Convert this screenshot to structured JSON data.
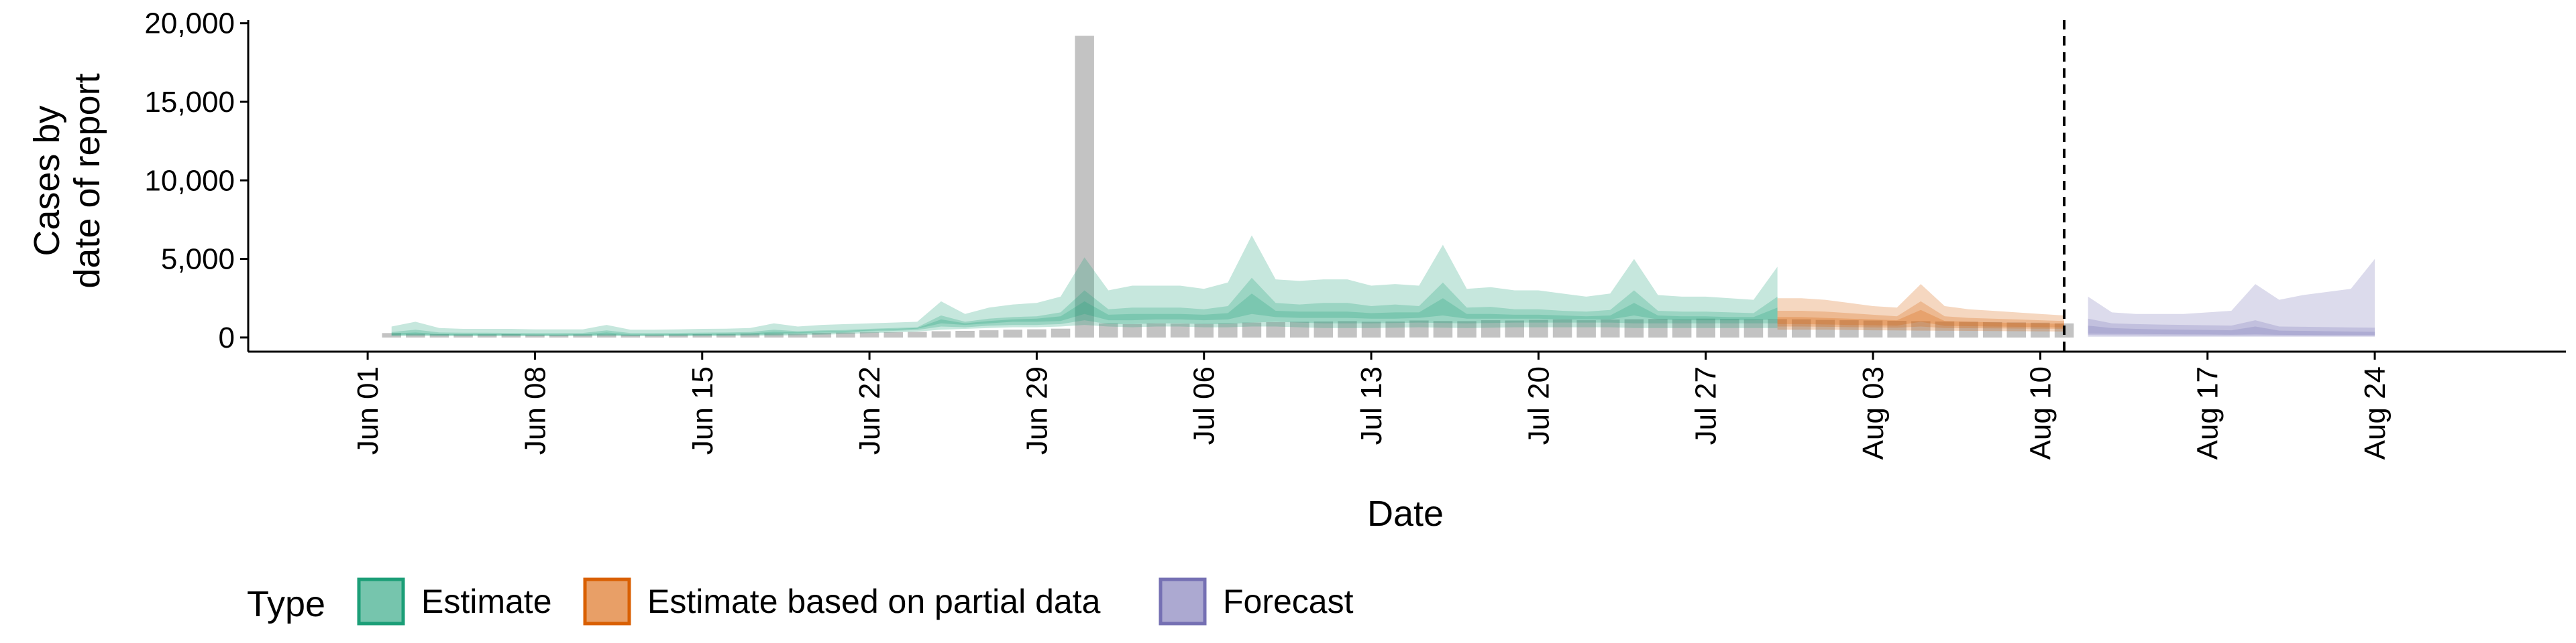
{
  "chart_data": {
    "type": "area",
    "xlabel": "Date",
    "ylabel_lines": [
      "Cases by",
      "date of report"
    ],
    "x_ticks": [
      "Jun 01",
      "Jun 08",
      "Jun 15",
      "Jun 22",
      "Jun 29",
      "Jul 06",
      "Jul 13",
      "Jul 20",
      "Jul 27",
      "Aug 03",
      "Aug 10",
      "Aug 17",
      "Aug 24"
    ],
    "y_ticks": [
      "0",
      "5,000",
      "10,000",
      "15,000",
      "20,000"
    ],
    "y_tick_values": [
      0,
      5000,
      10000,
      15000,
      20000
    ],
    "ylim": [
      -900,
      20200
    ],
    "x_range": [
      "2020-05-27",
      "2020-09-01"
    ],
    "vline_date": "2020-08-11",
    "observed_cases": {
      "color": "#bdbdbd",
      "start": "2020-06-02",
      "values": [
        280,
        230,
        210,
        190,
        200,
        210,
        180,
        170,
        190,
        200,
        170,
        180,
        190,
        210,
        230,
        250,
        260,
        240,
        290,
        310,
        330,
        340,
        360,
        400,
        420,
        460,
        500,
        520,
        560,
        19200,
        900,
        850,
        900,
        880,
        870,
        900,
        950,
        980,
        1000,
        1020,
        1040,
        1000,
        1020,
        1080,
        1050,
        1040,
        1100,
        1080,
        1120,
        1150,
        1100,
        1140,
        1160,
        1180,
        1150,
        1200,
        1180,
        1160,
        1170,
        1160,
        1120,
        1100,
        1080,
        1060,
        1040,
        1020,
        1000,
        980,
        960,
        940,
        900
      ]
    },
    "series": [
      {
        "name": "Estimate",
        "color": "#1b9e77",
        "start": "2020-06-02",
        "bands": [
          {
            "lower": [
              100,
              110,
              100,
              90,
              90,
              90,
              90,
              90,
              90,
              100,
              90,
              90,
              90,
              100,
              100,
              110,
              120,
              140,
              180,
              220,
              280,
              320,
              380,
              500,
              550,
              600,
              650,
              650,
              700,
              800,
              700,
              650,
              700,
              700,
              650,
              650,
              700,
              700,
              650,
              600,
              600,
              600,
              620,
              650,
              620,
              600,
              620,
              650,
              650,
              650,
              650,
              650,
              600,
              600,
              600,
              600,
              600,
              600,
              600
            ],
            "upper": [
              700,
              1000,
              600,
              550,
              550,
              550,
              520,
              520,
              520,
              800,
              500,
              500,
              520,
              550,
              560,
              600,
              900,
              700,
              800,
              850,
              900,
              950,
              1000,
              2300,
              1500,
              1900,
              2100,
              2200,
              2600,
              5100,
              3000,
              3300,
              3300,
              3300,
              3100,
              3500,
              6500,
              3700,
              3600,
              3700,
              3700,
              3300,
              3400,
              3300,
              5900,
              3100,
              3200,
              3000,
              3000,
              2800,
              2600,
              2800,
              5000,
              2700,
              2600,
              2600,
              2500,
              2400,
              4500
            ]
          },
          {
            "lower": [
              120,
              140,
              120,
              110,
              110,
              110,
              110,
              110,
              110,
              130,
              110,
              110,
              110,
              120,
              130,
              150,
              170,
              200,
              250,
              300,
              370,
              420,
              480,
              700,
              650,
              750,
              800,
              800,
              850,
              1100,
              850,
              850,
              900,
              900,
              850,
              850,
              950,
              1000,
              950,
              900,
              900,
              900,
              920,
              950,
              920,
              900,
              920,
              950,
              950,
              950,
              950,
              950,
              900,
              900,
              900,
              900,
              900,
              900,
              900
            ],
            "upper": [
              350,
              500,
              320,
              300,
              300,
              290,
              280,
              280,
              290,
              450,
              280,
              280,
              290,
              310,
              320,
              350,
              500,
              400,
              450,
              480,
              550,
              600,
              650,
              1400,
              1000,
              1200,
              1300,
              1350,
              1600,
              3000,
              1800,
              1900,
              1900,
              1900,
              1800,
              2000,
              3800,
              2200,
              2100,
              2200,
              2200,
              2000,
              2100,
              2000,
              3500,
              1900,
              1950,
              1800,
              1800,
              1700,
              1650,
              1750,
              3000,
              1700,
              1650,
              1650,
              1600,
              1550,
              2600
            ]
          },
          {
            "lower": [
              170,
              200,
              170,
              160,
              160,
              160,
              150,
              150,
              160,
              190,
              150,
              150,
              160,
              170,
              180,
              200,
              250,
              280,
              330,
              380,
              440,
              500,
              560,
              900,
              800,
              900,
              1000,
              1000,
              1050,
              1500,
              1100,
              1100,
              1150,
              1150,
              1100,
              1150,
              1500,
              1300,
              1250,
              1250,
              1250,
              1200,
              1200,
              1250,
              1400,
              1200,
              1200,
              1200,
              1200,
              1150,
              1150,
              1150,
              1400,
              1150,
              1100,
              1100,
              1100,
              1100,
              1150
            ],
            "upper": [
              250,
              320,
              230,
              220,
              220,
              210,
              200,
              200,
              210,
              320,
              200,
              200,
              210,
              230,
              240,
              260,
              360,
              330,
              380,
              420,
              480,
              540,
              600,
              1150,
              900,
              1050,
              1150,
              1200,
              1350,
              2300,
              1450,
              1500,
              1500,
              1500,
              1450,
              1550,
              2800,
              1700,
              1650,
              1650,
              1650,
              1550,
              1600,
              1600,
              2500,
              1500,
              1500,
              1450,
              1450,
              1400,
              1350,
              1400,
              2200,
              1400,
              1350,
              1350,
              1300,
              1300,
              1900
            ]
          }
        ]
      },
      {
        "name": "Estimate based on partial data",
        "color": "#d95f02",
        "start": "2020-07-30",
        "bands": [
          {
            "lower": [
              500,
              500,
              500,
              480,
              460,
              450,
              440,
              430,
              420,
              410,
              400,
              390,
              380
            ],
            "upper": [
              2500,
              2500,
              2400,
              2200,
              2000,
              1900,
              3400,
              2000,
              1800,
              1700,
              1600,
              1500,
              1400
            ]
          },
          {
            "lower": [
              700,
              700,
              680,
              660,
              640,
              620,
              700,
              600,
              590,
              580,
              570,
              560,
              550
            ],
            "upper": [
              1700,
              1700,
              1650,
              1550,
              1450,
              1350,
              2300,
              1350,
              1250,
              1200,
              1150,
              1100,
              1050
            ]
          },
          {
            "lower": [
              850,
              850,
              830,
              800,
              780,
              760,
              1000,
              740,
              720,
              700,
              680,
              660,
              640
            ],
            "upper": [
              1300,
              1300,
              1250,
              1200,
              1150,
              1100,
              1750,
              1050,
              1000,
              960,
              930,
              900,
              880
            ]
          }
        ]
      },
      {
        "name": "Forecast",
        "color": "#7570b3",
        "start": "2020-08-12",
        "bands": [
          {
            "lower": [
              50,
              50,
              50,
              50,
              50,
              50,
              50,
              50,
              50,
              50,
              50,
              50,
              50
            ],
            "upper": [
              2600,
              1600,
              1500,
              1500,
              1500,
              1600,
              1700,
              3400,
              2400,
              2700,
              2900,
              3100,
              5000
            ]
          },
          {
            "lower": [
              150,
              140,
              130,
              120,
              110,
              110,
              110,
              110,
              100,
              100,
              100,
              100,
              100
            ],
            "upper": [
              1200,
              900,
              850,
              820,
              800,
              780,
              760,
              1100,
              700,
              680,
              660,
              640,
              620
            ]
          },
          {
            "lower": [
              250,
              230,
              220,
              210,
              200,
              190,
              180,
              200,
              170,
              160,
              150,
              150,
              150
            ],
            "upper": [
              750,
              600,
              550,
              520,
              500,
              480,
              460,
              700,
              440,
              420,
              400,
              380,
              360
            ]
          }
        ]
      }
    ],
    "legend": {
      "title": "Type",
      "position": "bottom-left",
      "items": [
        {
          "label": "Estimate",
          "color": "#1b9e77"
        },
        {
          "label": "Estimate based on partial data",
          "color": "#d95f02"
        },
        {
          "label": "Forecast",
          "color": "#7570b3"
        }
      ]
    }
  }
}
